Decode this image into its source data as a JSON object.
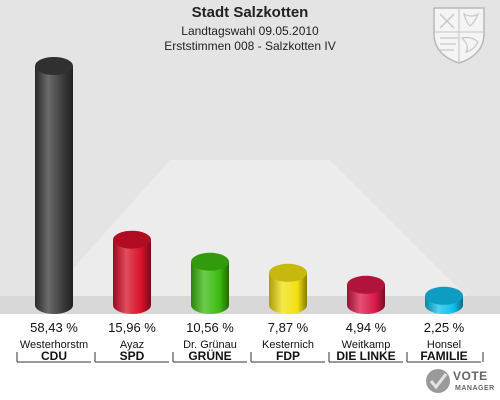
{
  "header": {
    "title": "Stadt Salzkotten",
    "subtitle": "Landtagswahl 09.05.2010",
    "subtitle2": "Erststimmen 008 - Salzkotten IV"
  },
  "chart_data": {
    "type": "bar",
    "title": "Stadt Salzkotten",
    "categories": [
      "CDU",
      "SPD",
      "GRÜNE",
      "FDP",
      "DIE LINKE",
      "FAMILIE"
    ],
    "candidates": [
      "Westerhorstm",
      "Ayaz",
      "Dr. Grünau",
      "Kesternich",
      "Weitkamp",
      "Honsel"
    ],
    "values": [
      58.43,
      15.96,
      10.56,
      7.87,
      4.94,
      2.25
    ],
    "value_labels": [
      "58,43 %",
      "15,96 %",
      "10,56 %",
      "7,87 %",
      "4,94 %",
      "2,25 %"
    ],
    "colors": [
      "#3a3a3a",
      "#d8102a",
      "#3cbc10",
      "#f2e010",
      "#d81848",
      "#10c0ec"
    ],
    "ylim": [
      0,
      60
    ],
    "grid": false,
    "legend": "none"
  },
  "branding": {
    "logo_text_1": "VOTE",
    "logo_text_2": "MANAGER"
  }
}
